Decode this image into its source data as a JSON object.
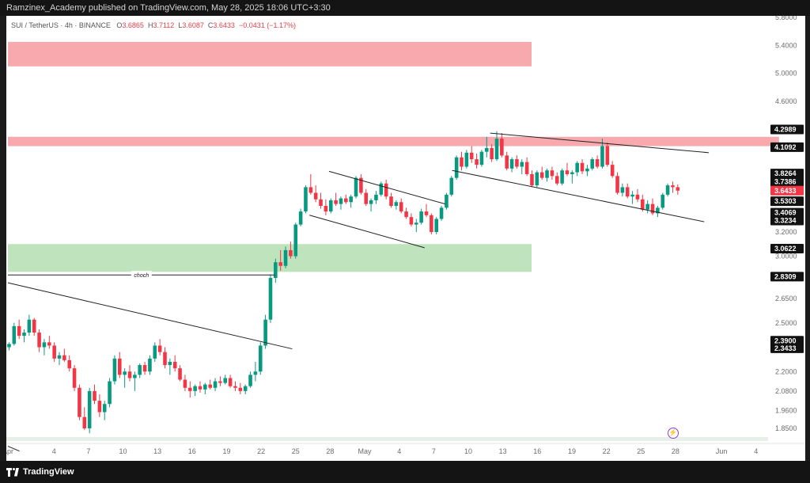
{
  "header": {
    "publisher_line": "Ramzinex_Academy published on TradingView.com, May 28, 2025 18:06 UTC+3:30"
  },
  "symbol_bar": {
    "symbol": "SUI / TetherUS · 4h · BINANCE",
    "open_label": "O",
    "open": "3.6865",
    "high_label": "H",
    "high": "3.7112",
    "low_label": "L",
    "low": "3.6087",
    "close_label": "C",
    "close": "3.6433",
    "change": "−0.0431 (−1.17%)"
  },
  "footer": {
    "brand": "TradingView"
  },
  "colors": {
    "up": "#089981",
    "down": "#f23645",
    "supply_zone": "#f7a9ad",
    "demand_zone": "#bfe3bd",
    "badge_current": "#f23645",
    "badge_level": "#111111"
  },
  "chart_data": {
    "type": "candlestick",
    "ylim": [
      1.8,
      5.8
    ],
    "y_ticks": [
      "5.8000",
      "5.4000",
      "5.0000",
      "4.6000",
      "3.2000",
      "3.0000",
      "2.6500",
      "2.5000",
      "2.2000",
      "2.0800",
      "1.9600",
      "1.8500"
    ],
    "x_ticks": [
      {
        "label": "Apr",
        "day": 0
      },
      {
        "label": "4",
        "day": 4
      },
      {
        "label": "7",
        "day": 7
      },
      {
        "label": "10",
        "day": 10
      },
      {
        "label": "13",
        "day": 13
      },
      {
        "label": "16",
        "day": 16
      },
      {
        "label": "19",
        "day": 19
      },
      {
        "label": "22",
        "day": 22
      },
      {
        "label": "25",
        "day": 25
      },
      {
        "label": "28",
        "day": 28
      },
      {
        "label": "May",
        "day": 31
      },
      {
        "label": "4",
        "day": 34
      },
      {
        "label": "7",
        "day": 37
      },
      {
        "label": "10",
        "day": 40
      },
      {
        "label": "13",
        "day": 43
      },
      {
        "label": "16",
        "day": 46
      },
      {
        "label": "19",
        "day": 49
      },
      {
        "label": "22",
        "day": 52
      },
      {
        "label": "25",
        "day": 55
      },
      {
        "label": "28",
        "day": 58
      },
      {
        "label": "Jun",
        "day": 62
      },
      {
        "label": "4",
        "day": 65
      }
    ],
    "price_badges": [
      {
        "label": "4.2989",
        "value": 4.2989,
        "kind": "level"
      },
      {
        "label": "4.1092",
        "value": 4.1092,
        "kind": "level"
      },
      {
        "label": "3.8264",
        "value": 3.8264,
        "kind": "level"
      },
      {
        "label": "3.7386",
        "value": 3.7386,
        "kind": "level"
      },
      {
        "label": "3.6433",
        "value": 3.6433,
        "kind": "current"
      },
      {
        "label": "3.5303",
        "value": 3.5303,
        "kind": "level"
      },
      {
        "label": "3.4069",
        "value": 3.4069,
        "kind": "level"
      },
      {
        "label": "3.3234",
        "value": 3.3234,
        "kind": "level"
      },
      {
        "label": "3.0622",
        "value": 3.0622,
        "kind": "level"
      },
      {
        "label": "2.8309",
        "value": 2.8309,
        "kind": "level"
      },
      {
        "label": "2.3900",
        "value": 2.39,
        "kind": "level"
      },
      {
        "label": "2.3433",
        "value": 2.3433,
        "kind": "level"
      }
    ],
    "zones": [
      {
        "kind": "supply",
        "from_day": 0,
        "to_day": 45.5,
        "y_low": 5.1,
        "y_high": 5.45
      },
      {
        "kind": "supply",
        "from_day": 0,
        "to_day": 67,
        "y_low": 4.12,
        "y_high": 4.22
      },
      {
        "kind": "demand",
        "from_day": 0,
        "to_day": 45.5,
        "y_low": 2.87,
        "y_high": 3.1
      }
    ],
    "annotations": [
      {
        "text": "choch",
        "x1_day": 0,
        "x2_day": 23.2,
        "y": 2.845
      }
    ],
    "trendlines": [
      {
        "x1": 0,
        "y1": 2.78,
        "x2": 24.7,
        "y2": 2.34
      },
      {
        "x1": 27.9,
        "y1": 3.85,
        "x2": 38,
        "y2": 3.5
      },
      {
        "x1": 26.2,
        "y1": 3.38,
        "x2": 36.2,
        "y2": 3.07
      },
      {
        "x1": 41.9,
        "y1": 4.26,
        "x2": 60.9,
        "y2": 4.05
      },
      {
        "x1": 38.6,
        "y1": 3.86,
        "x2": 60.5,
        "y2": 3.31
      },
      {
        "x1": 0,
        "y1": 1.74,
        "x2": 1,
        "y2": 1.71
      }
    ],
    "candles": [
      [
        2.35,
        2.38,
        2.33,
        2.37
      ],
      [
        2.37,
        2.5,
        2.36,
        2.48
      ],
      [
        2.48,
        2.52,
        2.4,
        2.42
      ],
      [
        2.42,
        2.46,
        2.38,
        2.44
      ],
      [
        2.44,
        2.55,
        2.42,
        2.52
      ],
      [
        2.52,
        2.53,
        2.42,
        2.44
      ],
      [
        2.44,
        2.46,
        2.32,
        2.35
      ],
      [
        2.35,
        2.4,
        2.3,
        2.38
      ],
      [
        2.38,
        2.42,
        2.34,
        2.36
      ],
      [
        2.36,
        2.38,
        2.26,
        2.28
      ],
      [
        2.28,
        2.32,
        2.24,
        2.3
      ],
      [
        2.3,
        2.34,
        2.26,
        2.27
      ],
      [
        2.27,
        2.3,
        2.2,
        2.22
      ],
      [
        2.22,
        2.24,
        2.08,
        2.1
      ],
      [
        2.1,
        2.12,
        1.9,
        1.92
      ],
      [
        1.92,
        1.98,
        1.84,
        1.85
      ],
      [
        1.85,
        2.1,
        1.82,
        2.08
      ],
      [
        2.08,
        2.12,
        2.0,
        2.02
      ],
      [
        2.02,
        2.06,
        1.92,
        1.95
      ],
      [
        1.95,
        2.02,
        1.9,
        2.0
      ],
      [
        2.0,
        2.16,
        1.98,
        2.14
      ],
      [
        2.14,
        2.3,
        2.12,
        2.28
      ],
      [
        2.28,
        2.32,
        2.16,
        2.18
      ],
      [
        2.18,
        2.22,
        2.1,
        2.2
      ],
      [
        2.2,
        2.24,
        2.14,
        2.16
      ],
      [
        2.16,
        2.2,
        2.08,
        2.18
      ],
      [
        2.18,
        2.25,
        2.16,
        2.24
      ],
      [
        2.24,
        2.26,
        2.18,
        2.2
      ],
      [
        2.2,
        2.3,
        2.18,
        2.28
      ],
      [
        2.28,
        2.38,
        2.26,
        2.36
      ],
      [
        2.36,
        2.4,
        2.3,
        2.32
      ],
      [
        2.32,
        2.35,
        2.22,
        2.24
      ],
      [
        2.24,
        2.28,
        2.18,
        2.26
      ],
      [
        2.26,
        2.3,
        2.2,
        2.22
      ],
      [
        2.22,
        2.24,
        2.14,
        2.15
      ],
      [
        2.15,
        2.18,
        2.08,
        2.1
      ],
      [
        2.1,
        2.14,
        2.04,
        2.08
      ],
      [
        2.08,
        2.12,
        2.05,
        2.11
      ],
      [
        2.11,
        2.14,
        2.07,
        2.09
      ],
      [
        2.09,
        2.13,
        2.06,
        2.12
      ],
      [
        2.12,
        2.15,
        2.09,
        2.1
      ],
      [
        2.1,
        2.16,
        2.08,
        2.14
      ],
      [
        2.14,
        2.17,
        2.11,
        2.13
      ],
      [
        2.13,
        2.18,
        2.12,
        2.16
      ],
      [
        2.16,
        2.18,
        2.1,
        2.11
      ],
      [
        2.11,
        2.14,
        2.08,
        2.1
      ],
      [
        2.1,
        2.13,
        2.06,
        2.08
      ],
      [
        2.08,
        2.12,
        2.06,
        2.11
      ],
      [
        2.11,
        2.2,
        2.1,
        2.18
      ],
      [
        2.18,
        2.26,
        2.14,
        2.2
      ],
      [
        2.2,
        2.38,
        2.18,
        2.36
      ],
      [
        2.36,
        2.55,
        2.34,
        2.52
      ],
      [
        2.52,
        2.85,
        2.5,
        2.82
      ],
      [
        2.82,
        2.98,
        2.78,
        2.95
      ],
      [
        2.95,
        3.05,
        2.88,
        2.92
      ],
      [
        2.92,
        3.08,
        2.9,
        3.05
      ],
      [
        3.05,
        3.12,
        2.98,
        3.0
      ],
      [
        3.0,
        3.3,
        2.98,
        3.28
      ],
      [
        3.28,
        3.45,
        3.26,
        3.42
      ],
      [
        3.42,
        3.7,
        3.4,
        3.68
      ],
      [
        3.68,
        3.82,
        3.6,
        3.62
      ],
      [
        3.62,
        3.7,
        3.52,
        3.55
      ],
      [
        3.55,
        3.62,
        3.45,
        3.48
      ],
      [
        3.48,
        3.55,
        3.38,
        3.42
      ],
      [
        3.42,
        3.56,
        3.4,
        3.54
      ],
      [
        3.54,
        3.62,
        3.48,
        3.5
      ],
      [
        3.5,
        3.58,
        3.44,
        3.56
      ],
      [
        3.56,
        3.6,
        3.5,
        3.52
      ],
      [
        3.52,
        3.6,
        3.46,
        3.58
      ],
      [
        3.58,
        3.8,
        3.56,
        3.78
      ],
      [
        3.78,
        3.82,
        3.6,
        3.62
      ],
      [
        3.62,
        3.66,
        3.48,
        3.5
      ],
      [
        3.5,
        3.56,
        3.42,
        3.54
      ],
      [
        3.54,
        3.64,
        3.5,
        3.6
      ],
      [
        3.6,
        3.74,
        3.58,
        3.72
      ],
      [
        3.72,
        3.76,
        3.55,
        3.58
      ],
      [
        3.58,
        3.62,
        3.46,
        3.48
      ],
      [
        3.48,
        3.54,
        3.44,
        3.52
      ],
      [
        3.52,
        3.56,
        3.4,
        3.42
      ],
      [
        3.42,
        3.46,
        3.34,
        3.36
      ],
      [
        3.36,
        3.4,
        3.26,
        3.28
      ],
      [
        3.28,
        3.34,
        3.2,
        3.3
      ],
      [
        3.3,
        3.45,
        3.28,
        3.42
      ],
      [
        3.42,
        3.5,
        3.36,
        3.38
      ],
      [
        3.38,
        3.4,
        3.18,
        3.2
      ],
      [
        3.2,
        3.36,
        3.18,
        3.34
      ],
      [
        3.34,
        3.48,
        3.32,
        3.46
      ],
      [
        3.46,
        3.62,
        3.44,
        3.6
      ],
      [
        3.6,
        3.8,
        3.58,
        3.78
      ],
      [
        3.78,
        4.02,
        3.76,
        4.0
      ],
      [
        4.0,
        4.06,
        3.86,
        3.9
      ],
      [
        3.9,
        4.08,
        3.88,
        4.05
      ],
      [
        4.05,
        4.12,
        3.94,
        3.98
      ],
      [
        3.98,
        4.04,
        3.88,
        3.92
      ],
      [
        3.92,
        4.08,
        3.9,
        4.06
      ],
      [
        4.06,
        4.22,
        4.0,
        4.1
      ],
      [
        4.1,
        4.14,
        3.95,
        3.98
      ],
      [
        3.98,
        4.28,
        3.96,
        4.2
      ],
      [
        4.2,
        4.26,
        4.0,
        4.02
      ],
      [
        4.02,
        4.06,
        3.86,
        3.88
      ],
      [
        3.88,
        4.0,
        3.84,
        3.98
      ],
      [
        3.98,
        4.02,
        3.88,
        3.9
      ],
      [
        3.9,
        3.98,
        3.82,
        3.95
      ],
      [
        3.95,
        4.0,
        3.8,
        3.82
      ],
      [
        3.82,
        3.86,
        3.68,
        3.7
      ],
      [
        3.7,
        3.86,
        3.68,
        3.84
      ],
      [
        3.84,
        3.9,
        3.76,
        3.78
      ],
      [
        3.78,
        3.88,
        3.74,
        3.86
      ],
      [
        3.86,
        3.9,
        3.76,
        3.8
      ],
      [
        3.8,
        3.84,
        3.7,
        3.72
      ],
      [
        3.72,
        3.88,
        3.7,
        3.86
      ],
      [
        3.86,
        3.94,
        3.8,
        3.82
      ],
      [
        3.82,
        3.86,
        3.72,
        3.84
      ],
      [
        3.84,
        3.96,
        3.8,
        3.94
      ],
      [
        3.94,
        3.98,
        3.82,
        3.85
      ],
      [
        3.85,
        3.92,
        3.8,
        3.88
      ],
      [
        3.88,
        4.0,
        3.86,
        3.98
      ],
      [
        3.98,
        4.02,
        3.88,
        3.9
      ],
      [
        3.9,
        4.2,
        3.88,
        4.12
      ],
      [
        4.12,
        4.16,
        3.9,
        3.92
      ],
      [
        3.92,
        3.96,
        3.78,
        3.8
      ],
      [
        3.8,
        3.84,
        3.6,
        3.62
      ],
      [
        3.62,
        3.72,
        3.58,
        3.68
      ],
      [
        3.68,
        3.72,
        3.56,
        3.58
      ],
      [
        3.58,
        3.64,
        3.5,
        3.6
      ],
      [
        3.6,
        3.66,
        3.52,
        3.55
      ],
      [
        3.55,
        3.6,
        3.42,
        3.44
      ],
      [
        3.44,
        3.54,
        3.4,
        3.5
      ],
      [
        3.5,
        3.56,
        3.38,
        3.4
      ],
      [
        3.4,
        3.48,
        3.36,
        3.46
      ],
      [
        3.46,
        3.62,
        3.44,
        3.6
      ],
      [
        3.6,
        3.72,
        3.58,
        3.7
      ],
      [
        3.7,
        3.74,
        3.62,
        3.68
      ],
      [
        3.68,
        3.71,
        3.6,
        3.6433
      ]
    ]
  }
}
